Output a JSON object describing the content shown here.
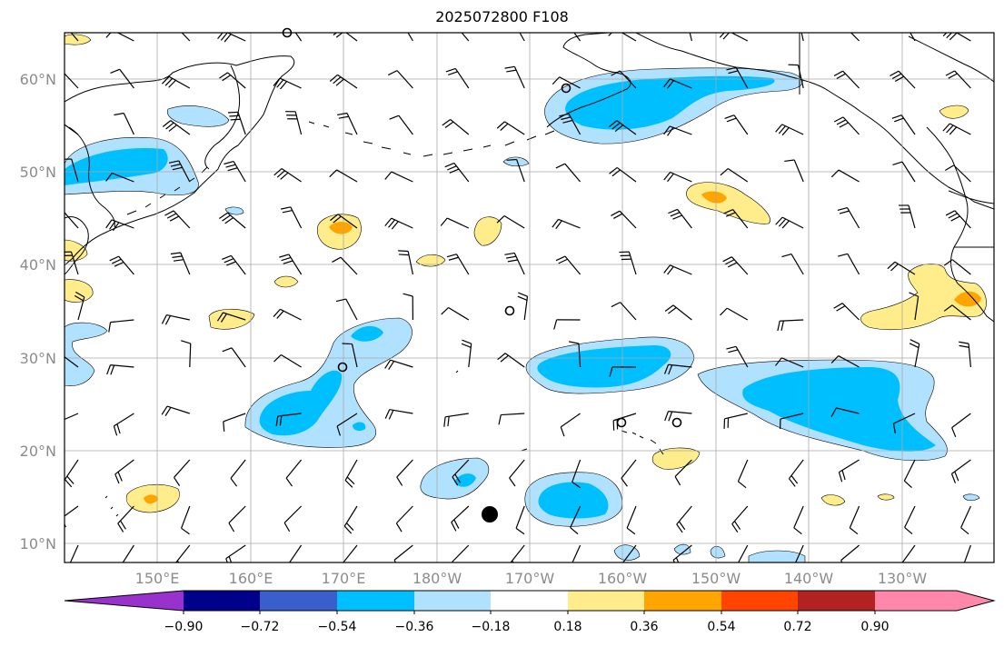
{
  "title": "2025072800 F108",
  "lat_labels": [
    "60°N",
    "50°N",
    "40°N",
    "30°N",
    "20°N",
    "10°N"
  ],
  "lon_labels": [
    "150°E",
    "160°E",
    "170°E",
    "180°W",
    "170°W",
    "160°W",
    "150°W",
    "140°W",
    "130°W"
  ],
  "colorbar": {
    "ticks": [
      "−0.90",
      "−0.72",
      "−0.54",
      "−0.36",
      "−0.18",
      "0.18",
      "0.36",
      "0.54",
      "0.72",
      "0.90"
    ],
    "colors": [
      "#9932cc",
      "#00008b",
      "#3a5fcd",
      "#00bfff",
      "#b0e2ff",
      "#ffffff",
      "#ffec8b",
      "#ffa500",
      "#ff4500",
      "#b22222",
      "#ff88aa"
    ]
  },
  "colors": {
    "light_blue": "#b0e2ff",
    "deep_sky_blue": "#00bfff",
    "light_yellow": "#ffec8b",
    "orange": "#ffa500",
    "grid": "#a9a9a9"
  }
}
